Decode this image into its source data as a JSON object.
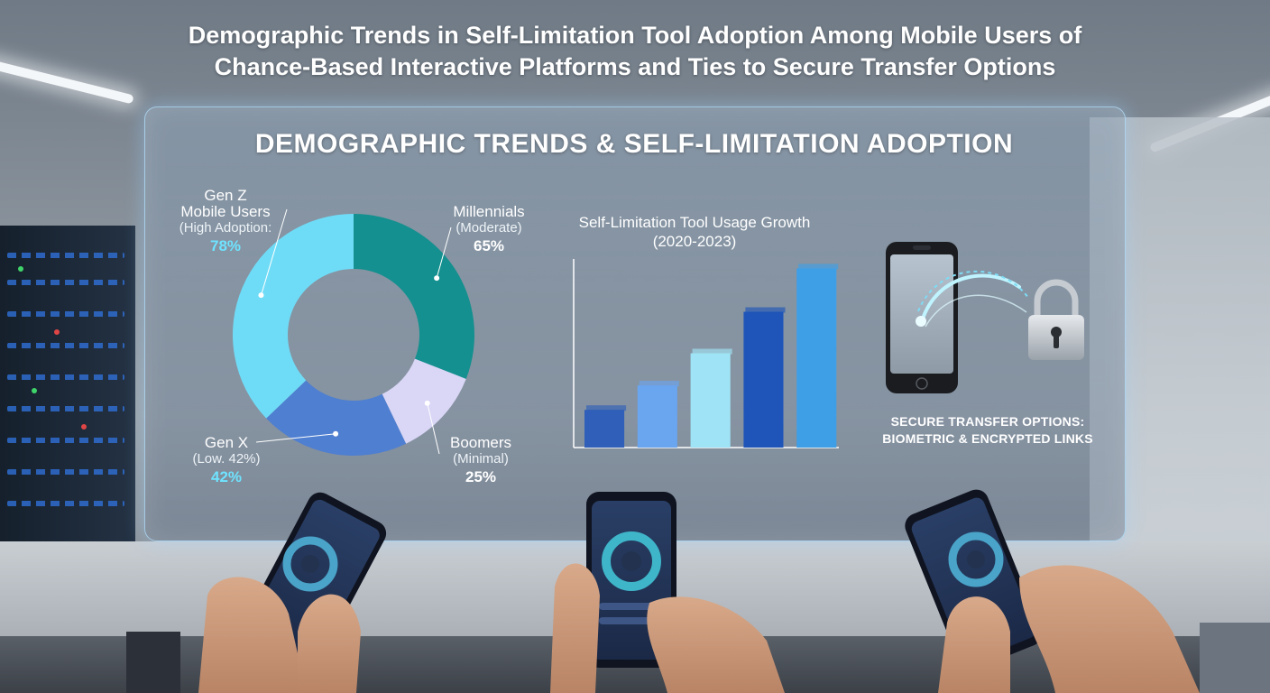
{
  "main_title_line1": "Demographic Trends in Self-Limitation Tool Adoption Among Mobile Users of",
  "main_title_line2": "Chance-Based Interactive Platforms and Ties to Secure Transfer Options",
  "panel_heading": "DEMOGRAPHIC TRENDS & SELF-LIMITATION ADOPTION",
  "donut": {
    "segments": [
      {
        "name_line1": "Gen Z",
        "name_line2": "Mobile Users",
        "sub": "(High Adoption:",
        "value_label": "78%",
        "value": 78,
        "color": "#6fdcf7"
      },
      {
        "name_line1": "Millennials",
        "name_line2": "",
        "sub": "(Moderate)",
        "value_label": "65%",
        "value": 65,
        "color": "#13908f"
      },
      {
        "name_line1": "Boomers",
        "name_line2": "",
        "sub": "(Minimal)",
        "value_label": "25%",
        "value": 25,
        "color": "#d9d6f6"
      },
      {
        "name_line1": "Gen X",
        "name_line2": "",
        "sub": "(Low. 42%)",
        "value_label": "42%",
        "value": 42,
        "color": "#4f7fd0"
      }
    ]
  },
  "chart_data": [
    {
      "type": "pie",
      "title": "",
      "categories": [
        "Gen Z Mobile Users",
        "Millennials",
        "Boomers",
        "Gen X"
      ],
      "values": [
        78,
        65,
        25,
        42
      ],
      "annotations": [
        "(High Adoption:",
        "(Moderate)",
        "(Minimal)",
        "(Low. 42%)"
      ]
    },
    {
      "type": "bar",
      "title": "Self-Limitation Tool Usage Growth (2020-2023)",
      "categories": [
        "",
        "",
        "",
        "",
        ""
      ],
      "values": [
        20,
        33,
        50,
        72,
        95
      ],
      "ylim": [
        0,
        100
      ],
      "grid": false,
      "colors": [
        "#2f5fb8",
        "#6aa5ef",
        "#9fe4f6",
        "#1f55b8",
        "#3f9fe6"
      ]
    }
  ],
  "bar_chart_title_line1": "Self-Limitation Tool Usage Growth",
  "bar_chart_title_line2": "(2020-2023)",
  "secure": {
    "line1": "SECURE TRANSFER OPTIONS:",
    "line2": "BIOMETRIC & ENCRYPTED LINKS",
    "icons": [
      "smartphone-icon",
      "padlock-icon"
    ]
  },
  "colors": {
    "accent_cyan": "#6fe3ff",
    "panel_border": "#b4e1ff"
  }
}
